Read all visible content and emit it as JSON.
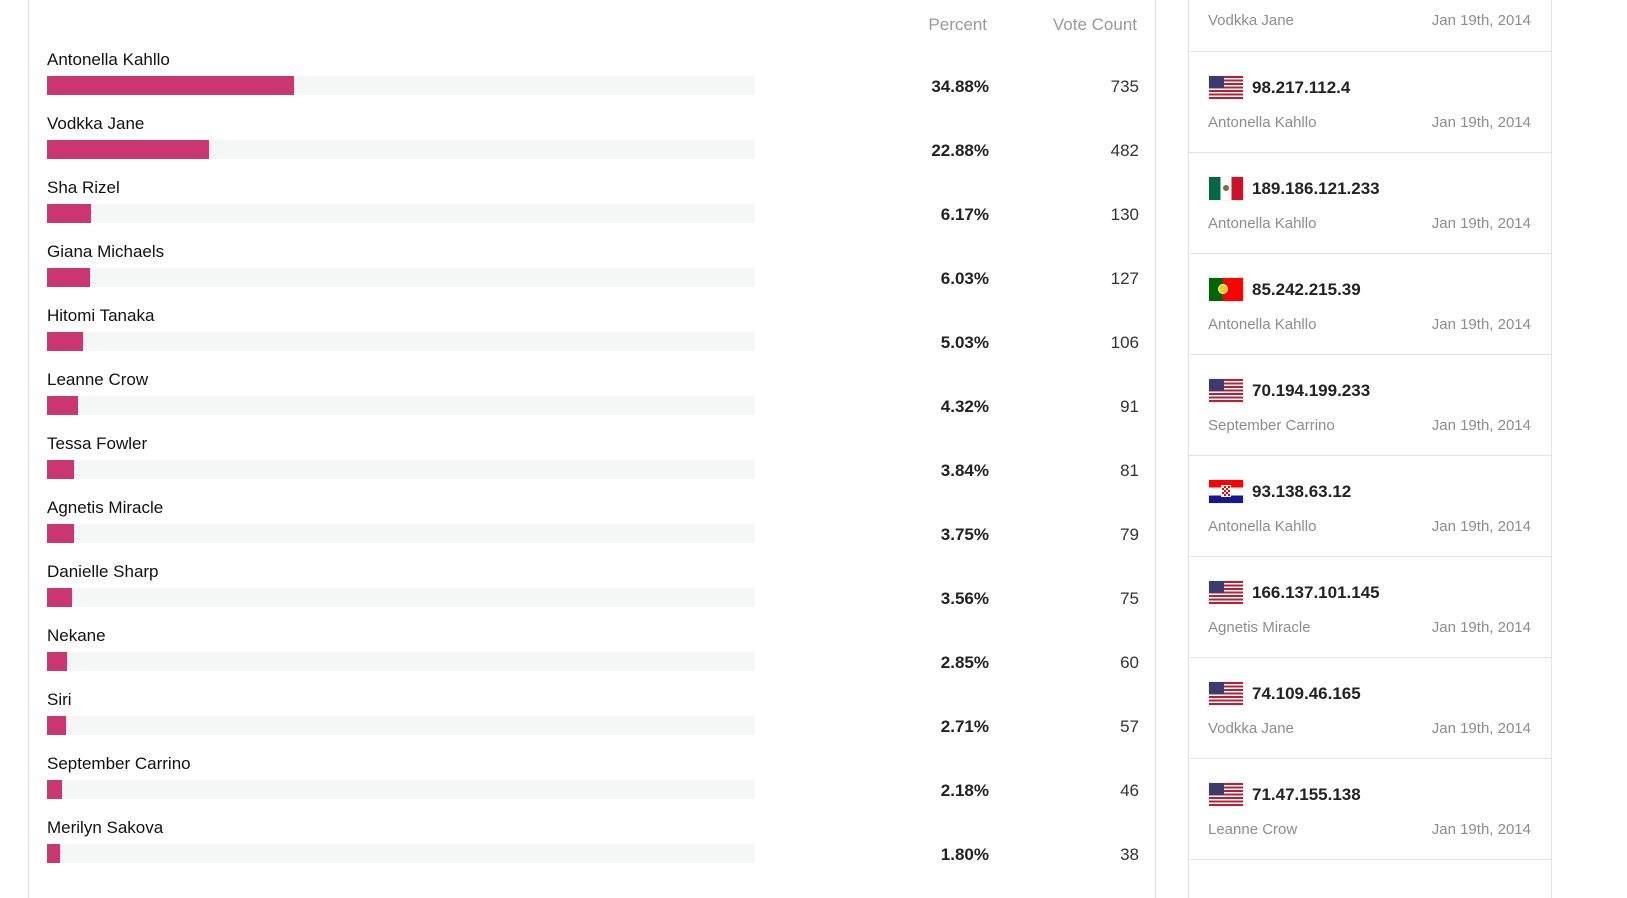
{
  "results": {
    "headers": {
      "percent": "Percent",
      "votes": "Vote Count"
    },
    "rows": [
      {
        "name": "Antonella Kahllo",
        "percent": "34.88%",
        "votes": "735",
        "share": 0.3488
      },
      {
        "name": "Vodkka Jane",
        "percent": "22.88%",
        "votes": "482",
        "share": 0.2288
      },
      {
        "name": "Sha Rizel",
        "percent": "6.17%",
        "votes": "130",
        "share": 0.0617
      },
      {
        "name": "Giana Michaels",
        "percent": "6.03%",
        "votes": "127",
        "share": 0.0603
      },
      {
        "name": "Hitomi Tanaka",
        "percent": "5.03%",
        "votes": "106",
        "share": 0.0503
      },
      {
        "name": "Leanne Crow",
        "percent": "4.32%",
        "votes": "91",
        "share": 0.0432
      },
      {
        "name": "Tessa Fowler",
        "percent": "3.84%",
        "votes": "81",
        "share": 0.0384
      },
      {
        "name": "Agnetis Miracle",
        "percent": "3.75%",
        "votes": "79",
        "share": 0.0375
      },
      {
        "name": "Danielle Sharp",
        "percent": "3.56%",
        "votes": "75",
        "share": 0.0356
      },
      {
        "name": "Nekane",
        "percent": "2.85%",
        "votes": "60",
        "share": 0.0285
      },
      {
        "name": "Siri",
        "percent": "2.71%",
        "votes": "57",
        "share": 0.0271
      },
      {
        "name": "September Carrino",
        "percent": "2.18%",
        "votes": "46",
        "share": 0.0218
      },
      {
        "name": "Merilyn Sakova",
        "percent": "1.80%",
        "votes": "38",
        "share": 0.018
      }
    ],
    "bar_color": "#cb3770"
  },
  "feed": {
    "top": {
      "voter": "Vodkka Jane",
      "date": "Jan 19th, 2014"
    },
    "items": [
      {
        "flag": "us-flag-icon",
        "ip": "98.217.112.4",
        "voter": "Antonella Kahllo",
        "date": "Jan 19th, 2014"
      },
      {
        "flag": "mx-flag-icon",
        "ip": "189.186.121.233",
        "voter": "Antonella Kahllo",
        "date": "Jan 19th, 2014"
      },
      {
        "flag": "pt-flag-icon",
        "ip": "85.242.215.39",
        "voter": "Antonella Kahllo",
        "date": "Jan 19th, 2014"
      },
      {
        "flag": "us-flag-icon",
        "ip": "70.194.199.233",
        "voter": "September Carrino",
        "date": "Jan 19th, 2014"
      },
      {
        "flag": "hr-flag-icon",
        "ip": "93.138.63.12",
        "voter": "Antonella Kahllo",
        "date": "Jan 19th, 2014"
      },
      {
        "flag": "us-flag-icon",
        "ip": "166.137.101.145",
        "voter": "Agnetis Miracle",
        "date": "Jan 19th, 2014"
      },
      {
        "flag": "us-flag-icon",
        "ip": "74.109.46.165",
        "voter": "Vodkka Jane",
        "date": "Jan 19th, 2014"
      },
      {
        "flag": "us-flag-icon",
        "ip": "71.47.155.138",
        "voter": "Leanne Crow",
        "date": "Jan 19th, 2014"
      }
    ]
  }
}
